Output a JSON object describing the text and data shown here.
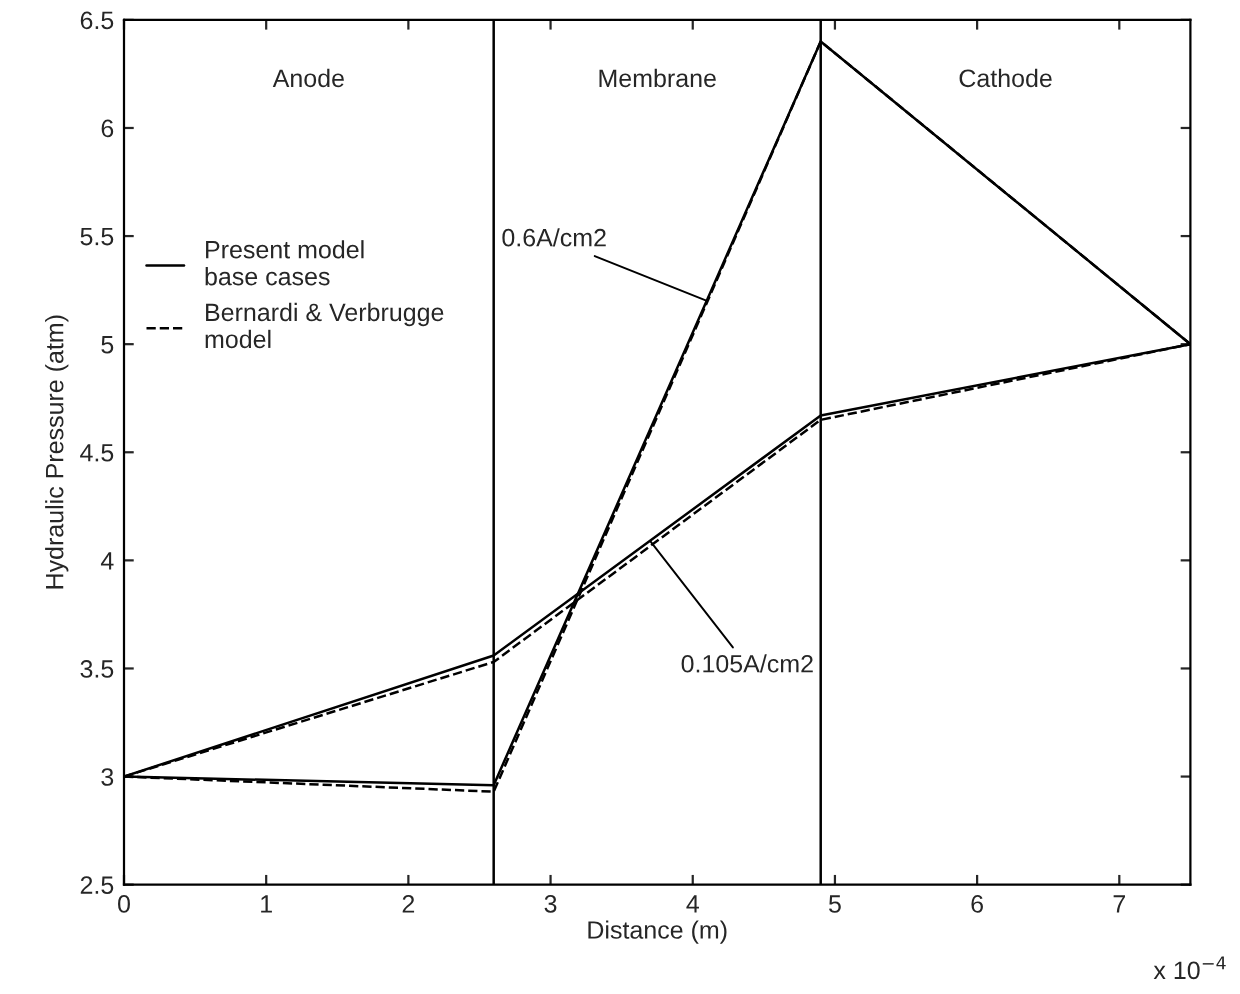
{
  "chart_data": {
    "type": "line",
    "xlabel": "Distance (m)",
    "ylabel": "Hydraulic Pressure (atm)",
    "xlim": [
      0,
      7.5
    ],
    "ylim": [
      2.5,
      6.5
    ],
    "xticks": [
      0,
      1,
      2,
      3,
      4,
      5,
      6,
      7
    ],
    "yticks": [
      2.5,
      3,
      3.5,
      4,
      4.5,
      5,
      5.5,
      6,
      6.5
    ],
    "x": [
      0,
      2.6,
      4.9,
      7.5
    ],
    "series": [
      {
        "name": "Present model\nbase cases",
        "color": "#000000",
        "line_style": "solid",
        "values": [
          3.0,
          2.96,
          6.4,
          5.0
        ]
      },
      {
        "color": "#000000",
        "line_style": "solid",
        "values": [
          3.0,
          3.56,
          4.67,
          5.0
        ]
      },
      {
        "name": "Bernardi & Verbrugge\nmodel",
        "color": "#000000",
        "line_style": "dashed",
        "values": [
          3.0,
          2.93,
          6.4,
          5.0
        ]
      },
      {
        "color": "#000000",
        "line_style": "dashed",
        "values": [
          3.0,
          3.53,
          4.65,
          5.0
        ]
      }
    ],
    "ref_lines": [
      {
        "axis": "x",
        "value": 2.6,
        "color": "#000000"
      },
      {
        "axis": "x",
        "value": 4.9,
        "color": "#000000"
      }
    ],
    "annotations": [
      "Anode",
      "Membrane",
      "Cathode",
      {
        "text": "0.6A/cm2",
        "x": 4.1,
        "y": 5.2
      },
      {
        "text": "0.105A/cm2",
        "x": 3.7,
        "y": 4.09
      },
      "x 10$^{−4}$"
    ],
    "legend": "left",
    "grid": false,
    "marker": "none"
  }
}
